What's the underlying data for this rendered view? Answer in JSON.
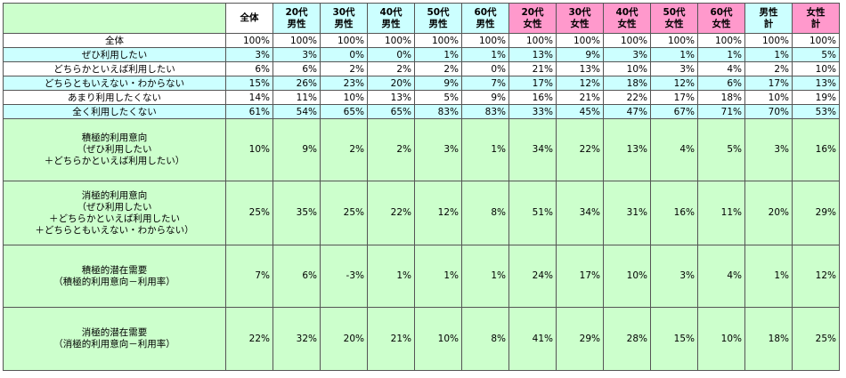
{
  "table": {
    "header": [
      "全体",
      "20代\n男性",
      "30代\n男性",
      "40代\n男性",
      "50代\n男性",
      "60代\n男性",
      "20代\n女性",
      "30代\n女性",
      "40代\n女性",
      "50代\n女性",
      "60代\n女性",
      "男性\n計",
      "女性\n計"
    ],
    "rows": [
      [
        "全体",
        "100%",
        "100%",
        "100%",
        "100%",
        "100%",
        "100%",
        "100%",
        "100%",
        "100%",
        "100%",
        "100%",
        "100%",
        "100%"
      ],
      [
        "ぜひ利用したい",
        "3%",
        "3%",
        "0%",
        "0%",
        "1%",
        "1%",
        "13%",
        "9%",
        "3%",
        "1%",
        "1%",
        "1%",
        "5%"
      ],
      [
        "どちらかといえば利用したい",
        "6%",
        "6%",
        "2%",
        "2%",
        "2%",
        "0%",
        "21%",
        "13%",
        "10%",
        "3%",
        "4%",
        "2%",
        "10%"
      ],
      [
        "どちらともいえない・わからない",
        "15%",
        "26%",
        "23%",
        "20%",
        "9%",
        "7%",
        "17%",
        "12%",
        "18%",
        "12%",
        "6%",
        "17%",
        "13%"
      ],
      [
        "あまり利用したくない",
        "14%",
        "11%",
        "10%",
        "13%",
        "5%",
        "9%",
        "16%",
        "21%",
        "22%",
        "17%",
        "18%",
        "10%",
        "19%"
      ],
      [
        "全く利用したくない",
        "61%",
        "54%",
        "65%",
        "65%",
        "83%",
        "83%",
        "33%",
        "45%",
        "47%",
        "67%",
        "71%",
        "70%",
        "53%"
      ],
      [
        "積極的利用意向\n（ぜひ利用したい\n＋どちらかといえば利用したい）",
        "10%",
        "9%",
        "2%",
        "2%",
        "3%",
        "1%",
        "34%",
        "22%",
        "13%",
        "4%",
        "5%",
        "3%",
        "16%"
      ],
      [
        "消極的利用意向\n（ぜひ利用したい\n＋どちらかといえば利用したい\n＋どちらともいえない・わからない）",
        "25%",
        "35%",
        "25%",
        "22%",
        "12%",
        "8%",
        "51%",
        "34%",
        "31%",
        "16%",
        "11%",
        "20%",
        "29%"
      ],
      [
        "積極的潜在需要\n（積極的利用意向－利用率）",
        "7%",
        "6%",
        "-3%",
        "1%",
        "1%",
        "1%",
        "24%",
        "17%",
        "10%",
        "3%",
        "4%",
        "1%",
        "12%"
      ],
      [
        "消極的潜在需要\n（消極的利用意向－利用率）",
        "22%",
        "32%",
        "20%",
        "21%",
        "10%",
        "8%",
        "41%",
        "29%",
        "28%",
        "15%",
        "10%",
        "18%",
        "25%"
      ]
    ]
  }
}
